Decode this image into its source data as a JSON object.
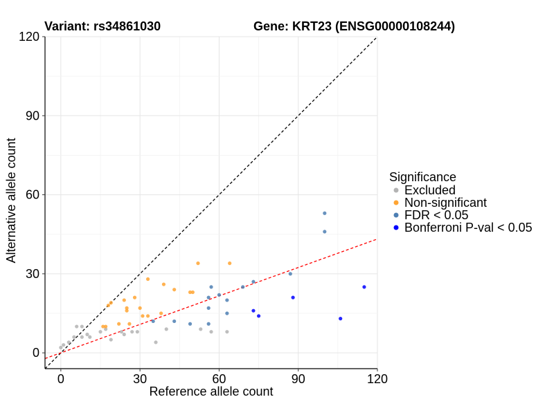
{
  "chart_data": {
    "type": "scatter",
    "title_variant": "Variant: rs34861030",
    "title_gene": "Gene: KRT23 (ENSG00000108244)",
    "xlabel": "Reference allele count",
    "ylabel": "Alternative allele count",
    "xlim": [
      -6,
      120
    ],
    "ylim": [
      -6,
      120
    ],
    "xticks": [
      0,
      30,
      60,
      90,
      120
    ],
    "yticks": [
      0,
      30,
      60,
      90,
      120
    ],
    "grid": true,
    "legend_position": "right",
    "legend_title": "Significance",
    "reference_lines": [
      {
        "name": "identity-line",
        "slope": 1,
        "intercept": 0,
        "color": "#000000",
        "style": "dashed"
      },
      {
        "name": "fit-line",
        "slope": 0.36,
        "intercept": 0,
        "color": "#ff0000",
        "style": "dashed"
      }
    ],
    "series": [
      {
        "name": "Excluded",
        "color": "#b3b3b3",
        "points": [
          [
            0,
            2
          ],
          [
            1,
            3
          ],
          [
            3,
            4
          ],
          [
            5,
            6
          ],
          [
            6,
            10
          ],
          [
            8,
            6
          ],
          [
            8,
            10
          ],
          [
            10,
            7
          ],
          [
            11,
            6
          ],
          [
            15,
            8
          ],
          [
            17,
            9
          ],
          [
            19,
            5
          ],
          [
            23,
            8
          ],
          [
            24,
            7
          ],
          [
            27,
            8
          ],
          [
            29,
            8
          ],
          [
            36,
            4
          ],
          [
            40,
            9
          ],
          [
            53,
            9
          ],
          [
            57,
            8
          ],
          [
            63,
            8
          ]
        ]
      },
      {
        "name": "Non-significant",
        "color": "#ffa533",
        "points": [
          [
            16,
            10
          ],
          [
            17,
            10
          ],
          [
            18,
            18
          ],
          [
            19,
            19
          ],
          [
            22,
            11
          ],
          [
            24,
            20
          ],
          [
            25,
            16
          ],
          [
            25,
            17
          ],
          [
            26,
            11
          ],
          [
            28,
            21
          ],
          [
            30,
            17
          ],
          [
            31,
            14
          ],
          [
            33,
            28
          ],
          [
            33,
            14
          ],
          [
            38,
            15
          ],
          [
            39,
            26
          ],
          [
            43,
            24
          ],
          [
            49,
            23
          ],
          [
            50,
            23
          ],
          [
            52,
            34
          ],
          [
            64,
            34
          ]
        ]
      },
      {
        "name": "FDR < 0.05",
        "color": "#4d7fb3",
        "points": [
          [
            35,
            12
          ],
          [
            43,
            12
          ],
          [
            49,
            11
          ],
          [
            56,
            21
          ],
          [
            56,
            17
          ],
          [
            56,
            11
          ],
          [
            57,
            25
          ],
          [
            60,
            22
          ],
          [
            63,
            20
          ],
          [
            63,
            15
          ],
          [
            69,
            25
          ],
          [
            73,
            27
          ],
          [
            87,
            30
          ],
          [
            100,
            53
          ],
          [
            100,
            46
          ]
        ]
      },
      {
        "name": "Bonferroni P-val < 0.05",
        "color": "#0000ff",
        "points": [
          [
            73,
            16
          ],
          [
            75,
            14
          ],
          [
            88,
            21
          ],
          [
            106,
            13
          ],
          [
            115,
            25
          ]
        ]
      }
    ]
  }
}
